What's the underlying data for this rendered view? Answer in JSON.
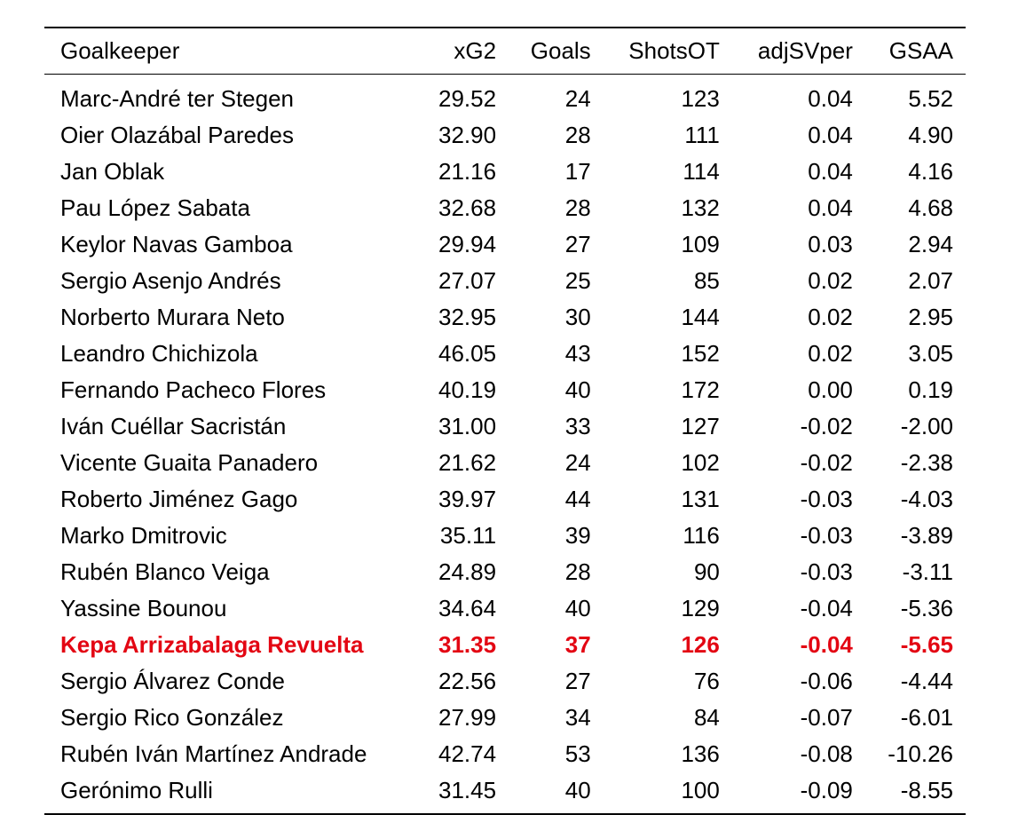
{
  "table": {
    "columns": [
      "Goalkeeper",
      "xG2",
      "Goals",
      "ShotsOT",
      "adjSVper",
      "GSAA"
    ],
    "highlight_color": "#e30613",
    "rows": [
      {
        "name": "Marc-André ter Stegen",
        "xg2": "29.52",
        "goals": "24",
        "shotsot": "123",
        "adjsvper": "0.04",
        "gsaa": "5.52",
        "highlight": false
      },
      {
        "name": "Oier Olazábal Paredes",
        "xg2": "32.90",
        "goals": "28",
        "shotsot": "111",
        "adjsvper": "0.04",
        "gsaa": "4.90",
        "highlight": false
      },
      {
        "name": "Jan Oblak",
        "xg2": "21.16",
        "goals": "17",
        "shotsot": "114",
        "adjsvper": "0.04",
        "gsaa": "4.16",
        "highlight": false
      },
      {
        "name": "Pau López Sabata",
        "xg2": "32.68",
        "goals": "28",
        "shotsot": "132",
        "adjsvper": "0.04",
        "gsaa": "4.68",
        "highlight": false
      },
      {
        "name": "Keylor Navas Gamboa",
        "xg2": "29.94",
        "goals": "27",
        "shotsot": "109",
        "adjsvper": "0.03",
        "gsaa": "2.94",
        "highlight": false
      },
      {
        "name": "Sergio Asenjo Andrés",
        "xg2": "27.07",
        "goals": "25",
        "shotsot": "85",
        "adjsvper": "0.02",
        "gsaa": "2.07",
        "highlight": false
      },
      {
        "name": "Norberto Murara Neto",
        "xg2": "32.95",
        "goals": "30",
        "shotsot": "144",
        "adjsvper": "0.02",
        "gsaa": "2.95",
        "highlight": false
      },
      {
        "name": "Leandro Chichizola",
        "xg2": "46.05",
        "goals": "43",
        "shotsot": "152",
        "adjsvper": "0.02",
        "gsaa": "3.05",
        "highlight": false
      },
      {
        "name": "Fernando Pacheco Flores",
        "xg2": "40.19",
        "goals": "40",
        "shotsot": "172",
        "adjsvper": "0.00",
        "gsaa": "0.19",
        "highlight": false
      },
      {
        "name": "Iván Cuéllar Sacristán",
        "xg2": "31.00",
        "goals": "33",
        "shotsot": "127",
        "adjsvper": "-0.02",
        "gsaa": "-2.00",
        "highlight": false
      },
      {
        "name": "Vicente Guaita Panadero",
        "xg2": "21.62",
        "goals": "24",
        "shotsot": "102",
        "adjsvper": "-0.02",
        "gsaa": "-2.38",
        "highlight": false
      },
      {
        "name": "Roberto Jiménez Gago",
        "xg2": "39.97",
        "goals": "44",
        "shotsot": "131",
        "adjsvper": "-0.03",
        "gsaa": "-4.03",
        "highlight": false
      },
      {
        "name": "Marko Dmitrovic",
        "xg2": "35.11",
        "goals": "39",
        "shotsot": "116",
        "adjsvper": "-0.03",
        "gsaa": "-3.89",
        "highlight": false
      },
      {
        "name": "Rubén Blanco Veiga",
        "xg2": "24.89",
        "goals": "28",
        "shotsot": "90",
        "adjsvper": "-0.03",
        "gsaa": "-3.11",
        "highlight": false
      },
      {
        "name": "Yassine Bounou",
        "xg2": "34.64",
        "goals": "40",
        "shotsot": "129",
        "adjsvper": "-0.04",
        "gsaa": "-5.36",
        "highlight": false
      },
      {
        "name": "Kepa Arrizabalaga Revuelta",
        "xg2": "31.35",
        "goals": "37",
        "shotsot": "126",
        "adjsvper": "-0.04",
        "gsaa": "-5.65",
        "highlight": true
      },
      {
        "name": "Sergio Álvarez Conde",
        "xg2": "22.56",
        "goals": "27",
        "shotsot": "76",
        "adjsvper": "-0.06",
        "gsaa": "-4.44",
        "highlight": false
      },
      {
        "name": "Sergio Rico González",
        "xg2": "27.99",
        "goals": "34",
        "shotsot": "84",
        "adjsvper": "-0.07",
        "gsaa": "-6.01",
        "highlight": false
      },
      {
        "name": "Rubén Iván Martínez Andrade",
        "xg2": "42.74",
        "goals": "53",
        "shotsot": "136",
        "adjsvper": "-0.08",
        "gsaa": "-10.26",
        "highlight": false
      },
      {
        "name": "Gerónimo Rulli",
        "xg2": "31.45",
        "goals": "40",
        "shotsot": "100",
        "adjsvper": "-0.09",
        "gsaa": "-8.55",
        "highlight": false
      }
    ]
  }
}
